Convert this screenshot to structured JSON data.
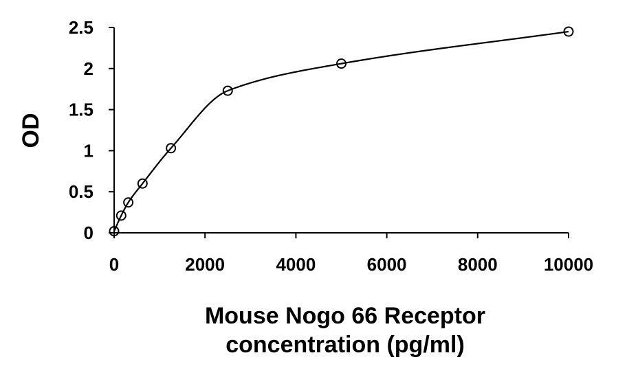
{
  "chart_data": {
    "type": "scatter",
    "title": "",
    "xlabel_lines": [
      "Mouse Nogo 66 Receptor",
      "concentration (pg/ml)"
    ],
    "ylabel": "OD",
    "xlim": [
      0,
      10000
    ],
    "ylim": [
      0,
      2.5
    ],
    "x_ticks": [
      0,
      2000,
      4000,
      6000,
      8000,
      10000
    ],
    "x_tick_labels": [
      "0",
      "2000",
      "4000",
      "6000",
      "8000",
      "10000"
    ],
    "y_ticks": [
      0,
      0.5,
      1,
      1.5,
      2,
      2.5
    ],
    "y_tick_labels": [
      "0",
      "0.5",
      "1",
      "1.5",
      "2",
      "2.5"
    ],
    "grid": false,
    "legend": "none",
    "series": [
      {
        "marker": "open-circle",
        "line": "smooth fitted curve",
        "color": "#000000",
        "x": [
          0,
          156,
          312,
          625,
          1250,
          2500,
          5000,
          10000
        ],
        "y": [
          0.02,
          0.21,
          0.37,
          0.6,
          1.03,
          1.73,
          2.06,
          2.45
        ]
      }
    ]
  }
}
